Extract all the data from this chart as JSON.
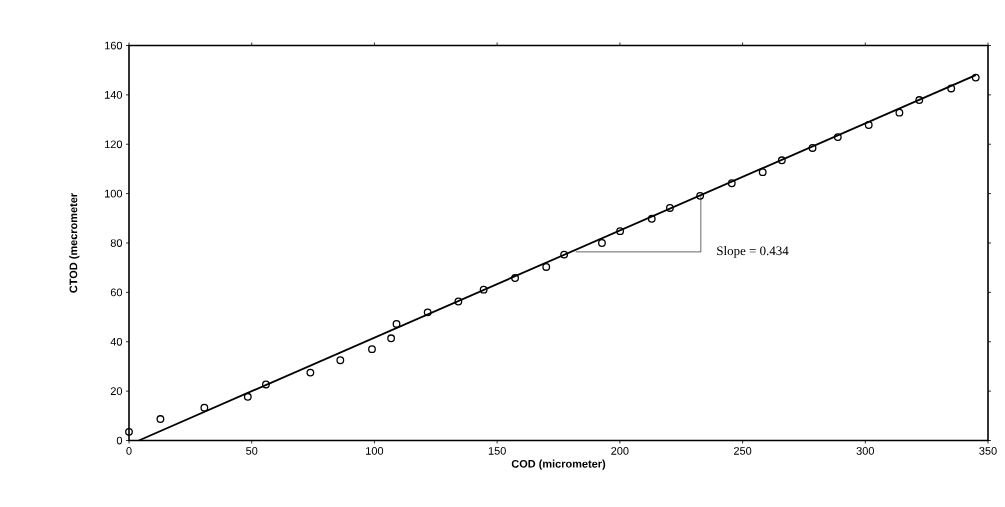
{
  "chart_data": {
    "type": "scatter",
    "xlabel": "COD (micrometer)",
    "ylabel": "CTOD (mecrometer",
    "xlim": [
      0,
      350
    ],
    "ylim": [
      0,
      160
    ],
    "xticks": [
      0,
      50,
      100,
      150,
      200,
      250,
      300,
      350
    ],
    "yticks": [
      0,
      20,
      40,
      60,
      80,
      100,
      120,
      140,
      160
    ],
    "grid": false,
    "marker": "circle",
    "series": [
      {
        "type": "line",
        "marker": "none",
        "color": "#000000",
        "x": [
          4,
          345
        ],
        "values": [
          0,
          148
        ]
      },
      {
        "type": "line",
        "marker": "none",
        "color": "#000000",
        "x": [
          182,
          233,
          233
        ],
        "values": [
          76.4,
          76.4,
          99.1
        ]
      },
      {
        "color": "#000000",
        "x": [
          0,
          12.8,
          30.7,
          48.4,
          55.8,
          73.9,
          86.1,
          99,
          106.8,
          109,
          121.7,
          134.2,
          144.5,
          157.3,
          170,
          177.3,
          192.7,
          200.1,
          213,
          220.4,
          232.7,
          245.6,
          258.2,
          266,
          278.5,
          288.8,
          301.4,
          313.9,
          322,
          335,
          345
        ],
        "values": [
          3.5,
          8.7,
          13.3,
          17.7,
          22.7,
          27.5,
          32.5,
          37,
          41.4,
          47.2,
          51.9,
          56.3,
          61.1,
          65.8,
          70.3,
          75.3,
          80,
          84.8,
          89.8,
          94.2,
          99.1,
          104.2,
          108.7,
          113.5,
          118.5,
          122.9,
          127.8,
          132.8,
          137.9,
          142.6,
          147
        ]
      }
    ],
    "annotations": [
      {
        "text": "Slope = 0.434",
        "x": 233,
        "y": 76.4
      }
    ]
  }
}
